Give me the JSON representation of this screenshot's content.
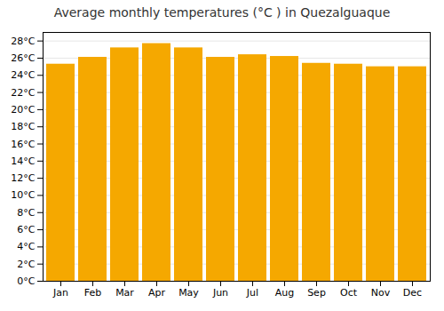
{
  "chart_data": {
    "type": "bar",
    "title": "Average monthly temperatures (°C ) in Quezalguaque",
    "categories": [
      "Jan",
      "Feb",
      "Mar",
      "Apr",
      "May",
      "Jun",
      "Jul",
      "Aug",
      "Sep",
      "Oct",
      "Nov",
      "Dec"
    ],
    "values": [
      25.3,
      26.1,
      27.2,
      27.7,
      27.2,
      26.1,
      26.4,
      26.2,
      25.4,
      25.3,
      25.0,
      25.0
    ],
    "color": "#F5A800",
    "ylim": [
      0,
      29
    ],
    "yticks": [
      {
        "value": 0,
        "label": "0°C"
      },
      {
        "value": 2,
        "label": "2°C"
      },
      {
        "value": 4,
        "label": "4°C"
      },
      {
        "value": 6,
        "label": "6°C"
      },
      {
        "value": 8,
        "label": "8°C"
      },
      {
        "value": 10,
        "label": "10°C"
      },
      {
        "value": 12,
        "label": "12°C"
      },
      {
        "value": 14,
        "label": "14°C"
      },
      {
        "value": 16,
        "label": "16°C"
      },
      {
        "value": 18,
        "label": "18°C"
      },
      {
        "value": 20,
        "label": "20°C"
      },
      {
        "value": 22,
        "label": "22°C"
      },
      {
        "value": 24,
        "label": "24°C"
      },
      {
        "value": 26,
        "label": "26°C"
      },
      {
        "value": 28,
        "label": "28°C"
      }
    ],
    "grid": true
  }
}
